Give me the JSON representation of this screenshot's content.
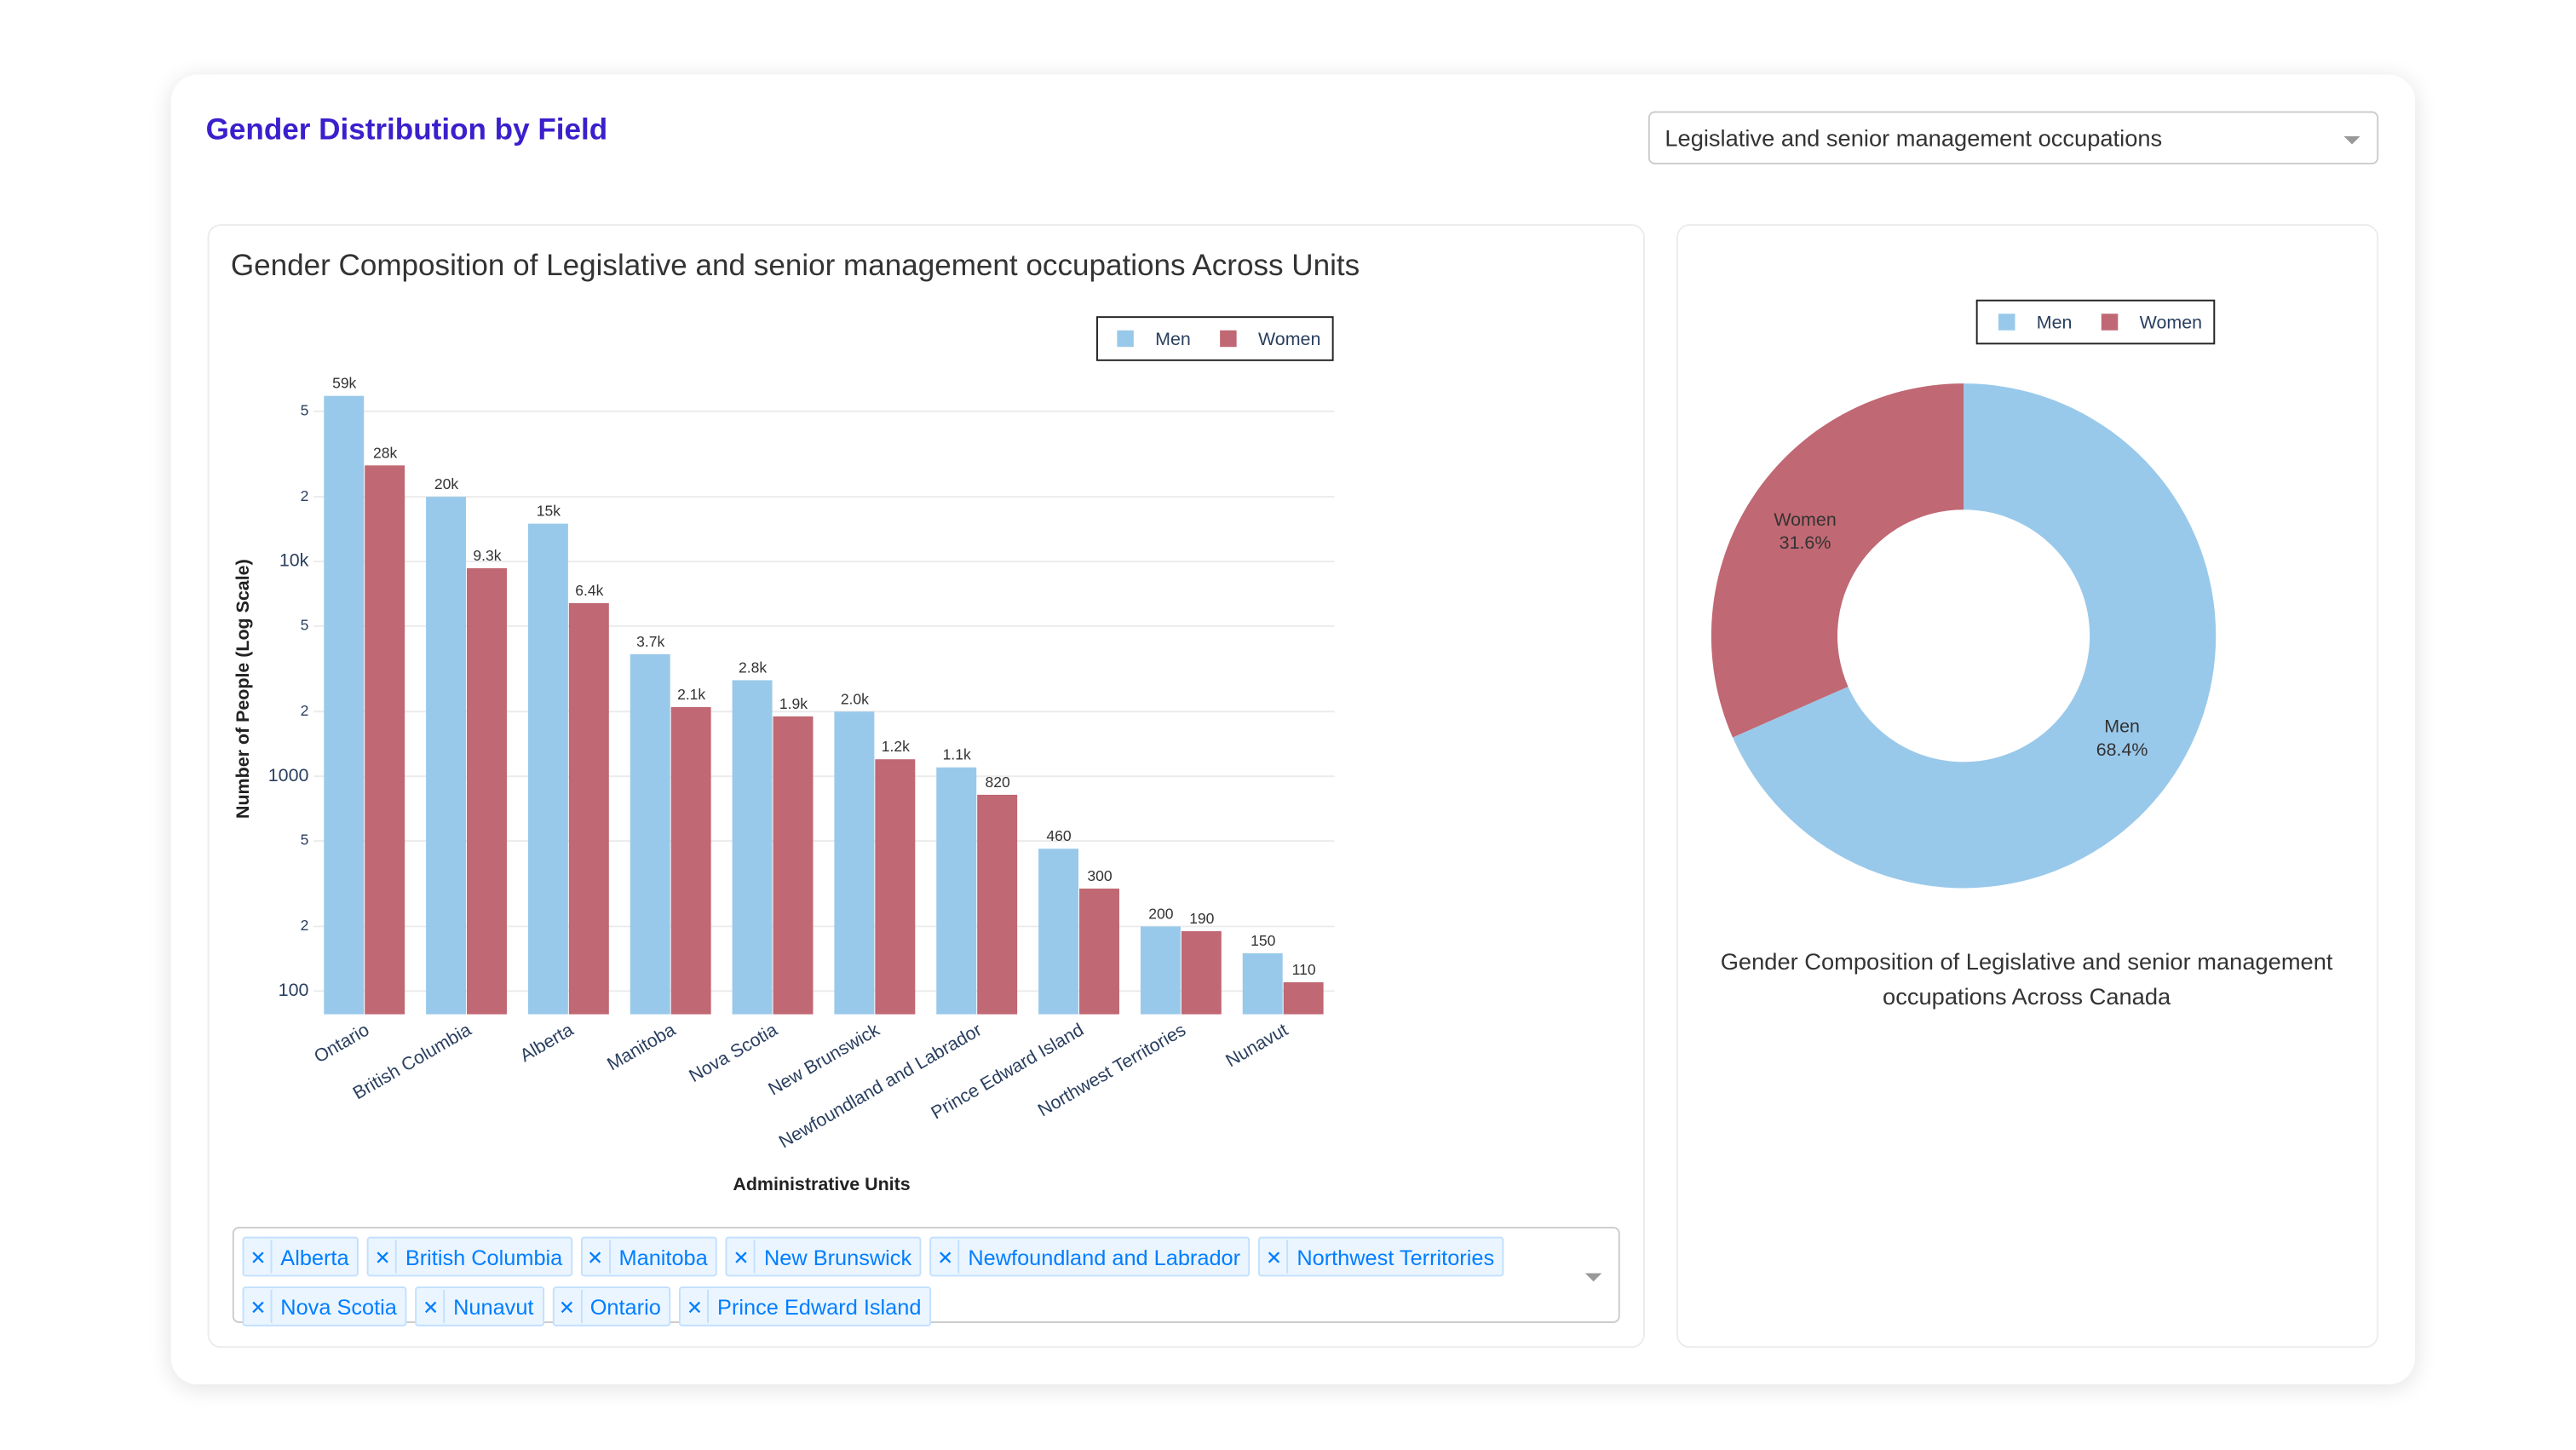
{
  "header": {
    "title": "Gender Distribution by Field"
  },
  "dropdown": {
    "value": "Legislative and senior management occupations"
  },
  "chart_data": [
    {
      "type": "bar",
      "title": "Gender Composition of Legislative and senior management occupations Across Units",
      "x_label": "Administrative Units",
      "y_label": "Number of People (Log Scale)",
      "categories": [
        "Ontario",
        "British Columbia",
        "Alberta",
        "Manitoba",
        "Nova Scotia",
        "New Brunswick",
        "Newfoundland and Labrador",
        "Prince Edward Island",
        "Northwest Territories",
        "Nunavut"
      ],
      "series": [
        {
          "name": "Men",
          "color": "#99c9ea",
          "values": [
            59000,
            20000,
            15000,
            3700,
            2800,
            2000,
            1100,
            460,
            200,
            150
          ],
          "value_labels": [
            "59k",
            "20k",
            "15k",
            "3.7k",
            "2.8k",
            "2.0k",
            "1.1k",
            "460",
            "200",
            "150"
          ]
        },
        {
          "name": "Women",
          "color": "#c06873",
          "values": [
            28000,
            9300,
            6400,
            2100,
            1900,
            1200,
            820,
            300,
            190,
            110
          ],
          "value_labels": [
            "28k",
            "9.3k",
            "6.4k",
            "2.1k",
            "1.9k",
            "1.2k",
            "820",
            "300",
            "190",
            "110"
          ]
        }
      ],
      "ylim": [
        78,
        75000
      ],
      "yticks": [
        100,
        {
          "value": 200,
          "label": "2"
        },
        {
          "value": 500,
          "label": "5"
        },
        1000,
        {
          "value": 2000,
          "label": "2"
        },
        {
          "value": 5000,
          "label": "5"
        },
        {
          "value": 10000,
          "label": "10k"
        },
        {
          "value": 20000,
          "label": "2"
        },
        {
          "value": 50000,
          "label": "5"
        }
      ],
      "log_scale": true,
      "grid": true,
      "legend": "top-right"
    },
    {
      "type": "pie",
      "title": "Gender Composition of Legislative and senior management occupations Across Canada",
      "categories": [
        "Men",
        "Women"
      ],
      "values": [
        68.4,
        31.6
      ],
      "value_labels": [
        "68.4%",
        "31.6%"
      ],
      "colors": [
        "#99c9ea",
        "#c06873"
      ],
      "legend": "top"
    }
  ],
  "filter": {
    "selected": [
      "Alberta",
      "British Columbia",
      "Manitoba",
      "New Brunswick",
      "Newfoundland and Labrador",
      "Northwest Territories",
      "Nova Scotia",
      "Nunavut",
      "Ontario",
      "Prince Edward Island"
    ]
  }
}
